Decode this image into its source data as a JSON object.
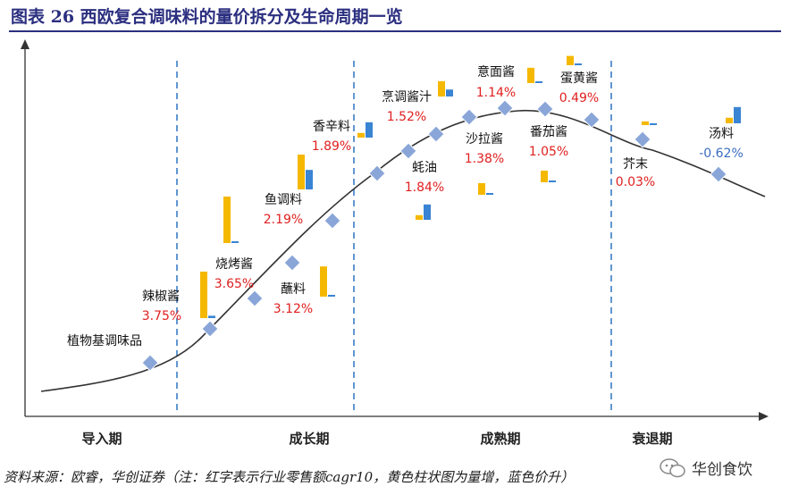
{
  "title": "图表 26   西欧复合调味料的量价拆分及生命周期一览",
  "source": "资料来源：欧睿，华创证券（注：红字表示行业零售额cagr10，黄色柱状图为量增，蓝色价升）",
  "watermark": "华创食饮",
  "colors": {
    "title": "#2b2f7f",
    "curve": "#333333",
    "divider": "#3a7cc5",
    "marker": "#8aa6d8",
    "volume": "#f5b800",
    "price": "#3a84d4",
    "positive": "#e02020",
    "negative": "#3a6cc0"
  },
  "chart_data": {
    "type": "lifecycle",
    "stages": [
      "导入期",
      "成长期",
      "成熟期",
      "衰退期"
    ],
    "points": [
      {
        "name": "植物基调味品",
        "cagr": "",
        "cagr_value": null,
        "volume": null,
        "price": null,
        "stage": "导入期"
      },
      {
        "name": "辣椒酱",
        "cagr": "3.75%",
        "cagr_value": 3.75,
        "volume": 1.0,
        "price": 0.05,
        "stage": "导入期"
      },
      {
        "name": "烧烤酱",
        "cagr": "3.65%",
        "cagr_value": 3.65,
        "volume": 1.0,
        "price": 0.03,
        "stage": "成长期"
      },
      {
        "name": "蘸料",
        "cagr": "3.12%",
        "cagr_value": 3.12,
        "volume": 0.65,
        "price": 0.03,
        "stage": "成长期"
      },
      {
        "name": "鱼调料",
        "cagr": "2.19%",
        "cagr_value": 2.19,
        "volume": 0.75,
        "price": 0.42,
        "stage": "成长期"
      },
      {
        "name": "香辛料",
        "cagr": "1.89%",
        "cagr_value": 1.89,
        "volume": 0.1,
        "price": 0.33,
        "stage": "成长期"
      },
      {
        "name": "蚝油",
        "cagr": "1.84%",
        "cagr_value": 1.84,
        "volume": 0.1,
        "price": 0.33,
        "stage": "成熟期"
      },
      {
        "name": "烹调酱汁",
        "cagr": "1.52%",
        "cagr_value": 1.52,
        "volume": 0.33,
        "price": 0.15,
        "stage": "成熟期"
      },
      {
        "name": "沙拉酱",
        "cagr": "1.38%",
        "cagr_value": 1.38,
        "volume": 0.25,
        "price": 0.03,
        "stage": "成熟期"
      },
      {
        "name": "意面酱",
        "cagr": "1.14%",
        "cagr_value": 1.14,
        "volume": 0.33,
        "price": 0.03,
        "stage": "成熟期"
      },
      {
        "name": "番茄酱",
        "cagr": "1.05%",
        "cagr_value": 1.05,
        "volume": 0.25,
        "price": 0.03,
        "stage": "成熟期"
      },
      {
        "name": "蛋黄酱",
        "cagr": "0.49%",
        "cagr_value": 0.49,
        "volume": 0.2,
        "price": 0.03,
        "stage": "成熟期"
      },
      {
        "name": "芥末",
        "cagr": "0.03%",
        "cagr_value": 0.03,
        "volume": 0.08,
        "price": 0.0,
        "stage": "衰退期"
      },
      {
        "name": "汤料",
        "cagr": "-0.62%",
        "cagr_value": -0.62,
        "volume": 0.12,
        "price": 0.35,
        "stage": "衰退期"
      }
    ],
    "note": "红字表示行业零售额cagr10，黄色柱状图为量增，蓝色价升"
  }
}
